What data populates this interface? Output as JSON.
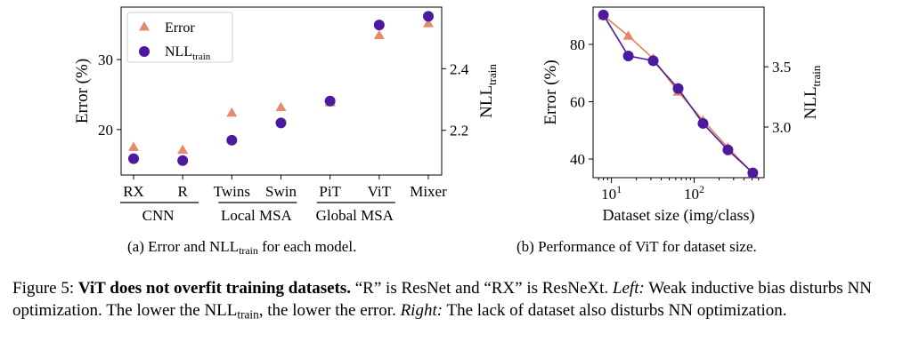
{
  "chart_data": [
    {
      "type": "scatter",
      "categories": [
        "RX",
        "R",
        "Twins",
        "Swin",
        "PiT",
        "ViT",
        "Mixer"
      ],
      "groups": [
        {
          "label": "CNN",
          "start": 0,
          "end": 1
        },
        {
          "label": "Local MSA",
          "start": 2,
          "end": 3
        },
        {
          "label": "Global MSA",
          "start": 4,
          "end": 5
        }
      ],
      "ylabel": "Error (%)",
      "ylabel2": "NLL",
      "ylabel2_sub": "train",
      "yticks": [
        20,
        30
      ],
      "yticks2": [
        "2.2",
        "2.4"
      ],
      "ylim": [
        13.5,
        37.5
      ],
      "y2lim": [
        2.055,
        2.6
      ],
      "legend_placement": "top-left",
      "series": [
        {
          "name": "Error",
          "name_sub": "",
          "marker": "triangle",
          "color": "#e0805e",
          "axis": "left",
          "values": [
            17.5,
            17.1,
            22.4,
            23.2,
            23.9,
            33.5,
            35.2
          ]
        },
        {
          "name": "NLL",
          "name_sub": "train",
          "marker": "circle",
          "color": "#4b1a9e",
          "axis": "right",
          "values": [
            2.108,
            2.102,
            2.168,
            2.224,
            2.295,
            2.542,
            2.57
          ]
        }
      ]
    },
    {
      "type": "line",
      "xlabel": "Dataset size (img/class)",
      "xscale": "log",
      "xlim": [
        6,
        700
      ],
      "xticks": [
        {
          "value": 10,
          "base": "10",
          "exp": "1"
        },
        {
          "value": 100,
          "base": "10",
          "exp": "2"
        }
      ],
      "ylabel": "Error (%)",
      "ylabel2": "NLL",
      "ylabel2_sub": "train",
      "yticks": [
        40,
        60,
        80
      ],
      "yticks2": [
        "3.0",
        "3.5"
      ],
      "ylim": [
        33.5,
        93
      ],
      "y2lim": [
        2.58,
        3.995
      ],
      "x": [
        8,
        16,
        32,
        64,
        128,
        256,
        512
      ],
      "series": [
        {
          "name": "Error",
          "marker": "triangle",
          "color": "#e0805e",
          "axis": "left",
          "values": [
            90,
            83,
            75,
            63.5,
            53.5,
            44,
            35
          ]
        },
        {
          "name": "NLL",
          "marker": "circle",
          "color": "#4b1a9e",
          "axis": "right",
          "values": [
            3.93,
            3.59,
            3.55,
            3.32,
            3.03,
            2.81,
            2.62
          ]
        }
      ]
    }
  ],
  "subcaptions": {
    "a": {
      "before": "(a) Error and NLL",
      "sub": "train",
      "after": " for each model."
    },
    "b": {
      "text": "(b) Performance of ViT for dataset size."
    }
  },
  "caption": {
    "label": "Figure 5: ",
    "bold": "ViT does not overfit training datasets.",
    "p1": " “R” is ResNet and “RX” is ResNeXt. ",
    "left_label": "Left:",
    "p2": " Weak inductive bias disturbs NN optimization. The lower the NLL",
    "p2_sub": "train",
    "p3": ", the lower the error. ",
    "right_label": "Right:",
    "p4": " The lack of dataset also disturbs NN optimization."
  }
}
